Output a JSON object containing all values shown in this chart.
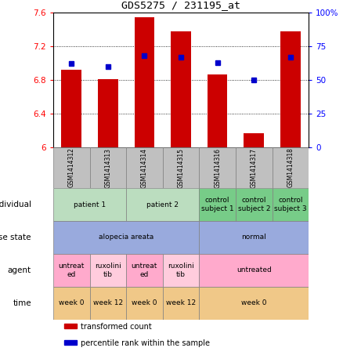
{
  "title": "GDS5275 / 231195_at",
  "samples": [
    "GSM1414312",
    "GSM1414313",
    "GSM1414314",
    "GSM1414315",
    "GSM1414316",
    "GSM1414317",
    "GSM1414318"
  ],
  "transformed_counts": [
    6.92,
    6.81,
    7.54,
    7.38,
    6.86,
    6.17,
    7.38
  ],
  "percentile_ranks": [
    62,
    60,
    68,
    67,
    63,
    50,
    67
  ],
  "ylim_left": [
    6.0,
    7.6
  ],
  "ylim_right": [
    0,
    100
  ],
  "yticks_left": [
    6.0,
    6.4,
    6.8,
    7.2,
    7.6
  ],
  "ytick_labels_left": [
    "6",
    "6.4",
    "6.8",
    "7.2",
    "7.6"
  ],
  "yticks_right": [
    0,
    25,
    50,
    75,
    100
  ],
  "ytick_labels_right": [
    "0",
    "25",
    "50",
    "75",
    "100%"
  ],
  "bar_color": "#cc0000",
  "dot_color": "#0000cc",
  "bar_bottom": 6.0,
  "annotation_rows": [
    {
      "label": "individual",
      "cells": [
        {
          "text": "patient 1",
          "span": 2,
          "color": "#bbddbf"
        },
        {
          "text": "patient 2",
          "span": 2,
          "color": "#bbddbf"
        },
        {
          "text": "control\nsubject 1",
          "span": 1,
          "color": "#77cc88"
        },
        {
          "text": "control\nsubject 2",
          "span": 1,
          "color": "#77cc88"
        },
        {
          "text": "control\nsubject 3",
          "span": 1,
          "color": "#77cc88"
        }
      ]
    },
    {
      "label": "disease state",
      "cells": [
        {
          "text": "alopecia areata",
          "span": 4,
          "color": "#99aadd"
        },
        {
          "text": "normal",
          "span": 3,
          "color": "#99aadd"
        }
      ]
    },
    {
      "label": "agent",
      "cells": [
        {
          "text": "untreat\ned",
          "span": 1,
          "color": "#ffaacc"
        },
        {
          "text": "ruxolini\ntib",
          "span": 1,
          "color": "#ffccdd"
        },
        {
          "text": "untreat\ned",
          "span": 1,
          "color": "#ffaacc"
        },
        {
          "text": "ruxolini\ntib",
          "span": 1,
          "color": "#ffccdd"
        },
        {
          "text": "untreated",
          "span": 3,
          "color": "#ffaacc"
        }
      ]
    },
    {
      "label": "time",
      "cells": [
        {
          "text": "week 0",
          "span": 1,
          "color": "#f0c888"
        },
        {
          "text": "week 12",
          "span": 1,
          "color": "#f0c888"
        },
        {
          "text": "week 0",
          "span": 1,
          "color": "#f0c888"
        },
        {
          "text": "week 12",
          "span": 1,
          "color": "#f0c888"
        },
        {
          "text": "week 0",
          "span": 3,
          "color": "#f0c888"
        }
      ]
    }
  ],
  "legend_items": [
    {
      "color": "#cc0000",
      "label": "transformed count"
    },
    {
      "color": "#0000cc",
      "label": "percentile rank within the sample"
    }
  ],
  "header_color": "#cccccc",
  "sample_header_color": "#c0c0c0"
}
